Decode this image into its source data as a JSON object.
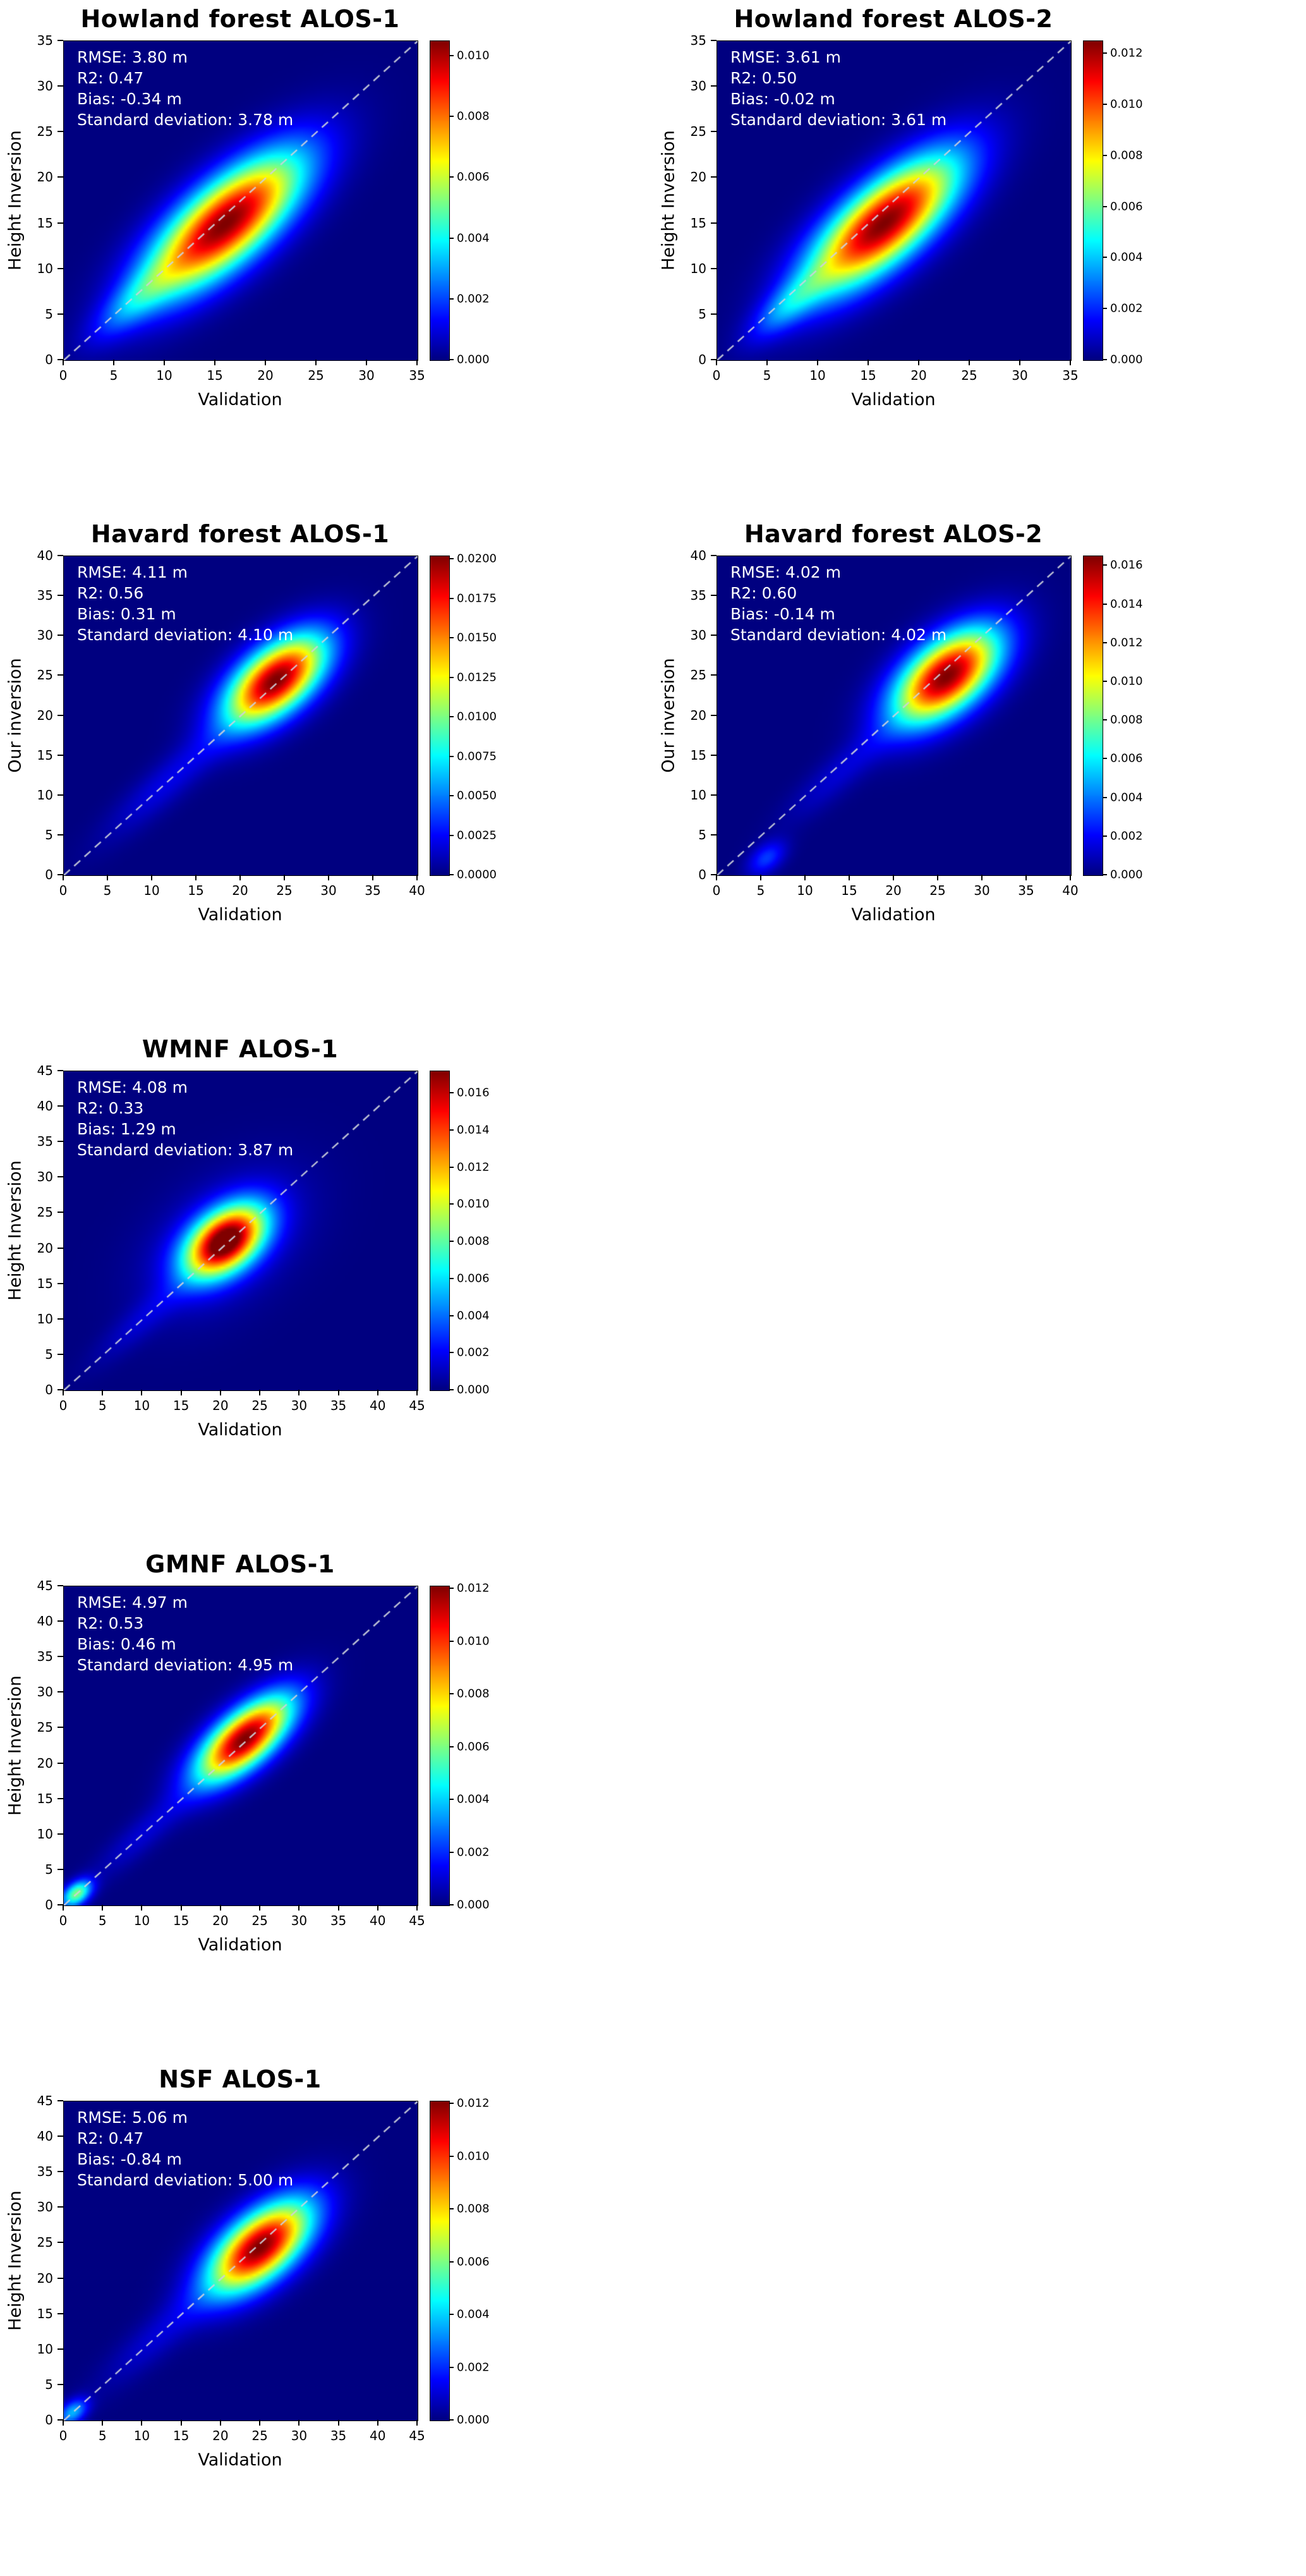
{
  "figure": {
    "background": "#ffffff",
    "colormap": "jet",
    "diagonal_line_style": "dashed",
    "diagonal_line_color": "#cdd2dc"
  },
  "chart_data": [
    {
      "type": "heatmap",
      "title": "Howland forest ALOS-1",
      "row": 0,
      "col": 0,
      "xlabel": "Validation",
      "ylabel": "Height Inversion",
      "xlim": [
        0,
        35
      ],
      "ylim": [
        0,
        35
      ],
      "tick_values": [
        0,
        5,
        10,
        15,
        20,
        25,
        30,
        35
      ],
      "stats": {
        "rmse_m": 3.8,
        "r2": 0.47,
        "bias_m": -0.34,
        "std_m": 3.78
      },
      "stats_lines": [
        "RMSE: 3.80 m",
        "R2: 0.47",
        "Bias: -0.34 m",
        "Standard deviation: 3.78 m"
      ],
      "colorbar": {
        "vmax": 0.0105,
        "tick_values": [
          0.0,
          0.002,
          0.004,
          0.006,
          0.008,
          0.01
        ],
        "tick_labels": [
          "0.000",
          "0.002",
          "0.004",
          "0.006",
          "0.008",
          "0.010"
        ]
      },
      "diagonal_line": true,
      "blobs": [
        {
          "cx": 16,
          "cy": 15,
          "su": 7.0,
          "sv": 2.8,
          "amp": 1.0
        },
        {
          "cx": 7,
          "cy": 6.5,
          "su": 4.0,
          "sv": 1.4,
          "amp": 0.2
        }
      ]
    },
    {
      "type": "heatmap",
      "title": "Howland forest ALOS-2",
      "row": 0,
      "col": 1,
      "xlabel": "Validation",
      "ylabel": "Height Inversion",
      "xlim": [
        0,
        35
      ],
      "ylim": [
        0,
        35
      ],
      "tick_values": [
        0,
        5,
        10,
        15,
        20,
        25,
        30,
        35
      ],
      "stats": {
        "rmse_m": 3.61,
        "r2": 0.5,
        "bias_m": -0.02,
        "std_m": 3.61
      },
      "stats_lines": [
        "RMSE: 3.61 m",
        "R2: 0.50",
        "Bias: -0.02 m",
        "Standard deviation: 3.61 m"
      ],
      "colorbar": {
        "vmax": 0.0125,
        "tick_values": [
          0.0,
          0.002,
          0.004,
          0.006,
          0.008,
          0.01,
          0.012
        ],
        "tick_labels": [
          "0.000",
          "0.002",
          "0.004",
          "0.006",
          "0.008",
          "0.010",
          "0.012"
        ]
      },
      "diagonal_line": true,
      "blobs": [
        {
          "cx": 16.5,
          "cy": 15,
          "su": 6.8,
          "sv": 2.7,
          "amp": 1.0
        },
        {
          "cx": 7,
          "cy": 6,
          "su": 3.5,
          "sv": 1.3,
          "amp": 0.22
        }
      ]
    },
    {
      "type": "heatmap",
      "title": "Havard forest ALOS-1",
      "row": 1,
      "col": 0,
      "xlabel": "Validation",
      "ylabel": "Our inversion",
      "xlim": [
        0,
        40
      ],
      "ylim": [
        0,
        40
      ],
      "tick_values": [
        0,
        5,
        10,
        15,
        20,
        25,
        30,
        35,
        40
      ],
      "stats": {
        "rmse_m": 4.11,
        "r2": 0.56,
        "bias_m": 0.31,
        "std_m": 4.1
      },
      "stats_lines": [
        "RMSE: 4.11 m",
        "R2: 0.56",
        "Bias: 0.31 m",
        "Standard deviation: 4.10 m"
      ],
      "colorbar": {
        "vmax": 0.0202,
        "tick_values": [
          0.0,
          0.0025,
          0.005,
          0.0075,
          0.01,
          0.0125,
          0.015,
          0.0175,
          0.02
        ],
        "tick_labels": [
          "0.0000",
          "0.0025",
          "0.0050",
          "0.0075",
          "0.0100",
          "0.0125",
          "0.0150",
          "0.0175",
          "0.0200"
        ]
      },
      "diagonal_line": true,
      "blobs": [
        {
          "cx": 24,
          "cy": 24.5,
          "su": 5.0,
          "sv": 2.6,
          "amp": 1.0
        },
        {
          "cx": 12,
          "cy": 12,
          "su": 7.0,
          "sv": 1.6,
          "amp": 0.1
        }
      ]
    },
    {
      "type": "heatmap",
      "title": "Havard forest ALOS-2",
      "row": 1,
      "col": 1,
      "xlabel": "Validation",
      "ylabel": "Our inversion",
      "xlim": [
        0,
        40
      ],
      "ylim": [
        0,
        40
      ],
      "tick_values": [
        0,
        5,
        10,
        15,
        20,
        25,
        30,
        35,
        40
      ],
      "stats": {
        "rmse_m": 4.02,
        "r2": 0.6,
        "bias_m": -0.14,
        "std_m": 4.02
      },
      "stats_lines": [
        "RMSE: 4.02 m",
        "R2: 0.60",
        "Bias: -0.14 m",
        "Standard deviation: 4.02 m"
      ],
      "colorbar": {
        "vmax": 0.0165,
        "tick_values": [
          0.0,
          0.002,
          0.004,
          0.006,
          0.008,
          0.01,
          0.012,
          0.014,
          0.016
        ],
        "tick_labels": [
          "0.000",
          "0.002",
          "0.004",
          "0.006",
          "0.008",
          "0.010",
          "0.012",
          "0.014",
          "0.016"
        ]
      },
      "diagonal_line": true,
      "blobs": [
        {
          "cx": 26,
          "cy": 25,
          "su": 5.2,
          "sv": 2.8,
          "amp": 1.0
        },
        {
          "cx": 5.5,
          "cy": 2,
          "su": 1.8,
          "sv": 1.1,
          "amp": 0.18
        },
        {
          "cx": 14,
          "cy": 13,
          "su": 6.0,
          "sv": 1.5,
          "amp": 0.08
        }
      ]
    },
    {
      "type": "heatmap",
      "title": "WMNF ALOS-1",
      "row": 2,
      "col": 0,
      "xlabel": "Validation",
      "ylabel": "Height Inversion",
      "xlim": [
        0,
        45
      ],
      "ylim": [
        0,
        45
      ],
      "tick_values": [
        0,
        5,
        10,
        15,
        20,
        25,
        30,
        35,
        40,
        45
      ],
      "stats": {
        "rmse_m": 4.08,
        "r2": 0.33,
        "bias_m": 1.29,
        "std_m": 3.87
      },
      "stats_lines": [
        "RMSE: 4.08 m",
        "R2: 0.33",
        "Bias: 1.29 m",
        "Standard deviation: 3.87 m"
      ],
      "colorbar": {
        "vmax": 0.0172,
        "tick_values": [
          0.0,
          0.002,
          0.004,
          0.006,
          0.008,
          0.01,
          0.012,
          0.014,
          0.016
        ],
        "tick_labels": [
          "0.000",
          "0.002",
          "0.004",
          "0.006",
          "0.008",
          "0.010",
          "0.012",
          "0.014",
          "0.016"
        ]
      },
      "diagonal_line": true,
      "blobs": [
        {
          "cx": 20.5,
          "cy": 21,
          "su": 4.2,
          "sv": 2.6,
          "amp": 1.0
        },
        {
          "cx": 20.5,
          "cy": 21,
          "su": 8.0,
          "sv": 5.0,
          "amp": 0.12
        },
        {
          "cx": 10,
          "cy": 10,
          "su": 6.0,
          "sv": 1.5,
          "amp": 0.07
        }
      ]
    },
    {
      "type": "heatmap",
      "title": "GMNF ALOS-1",
      "row": 3,
      "col": 0,
      "xlabel": "Validation",
      "ylabel": "Height Inversion",
      "xlim": [
        0,
        45
      ],
      "ylim": [
        0,
        45
      ],
      "tick_values": [
        0,
        5,
        10,
        15,
        20,
        25,
        30,
        35,
        40,
        45
      ],
      "stats": {
        "rmse_m": 4.97,
        "r2": 0.53,
        "bias_m": 0.46,
        "std_m": 4.95
      },
      "stats_lines": [
        "RMSE: 4.97 m",
        "R2: 0.53",
        "Bias: 0.46 m",
        "Standard deviation: 4.95 m"
      ],
      "colorbar": {
        "vmax": 0.0121,
        "tick_values": [
          0.0,
          0.002,
          0.004,
          0.006,
          0.008,
          0.01,
          0.012
        ],
        "tick_labels": [
          "0.000",
          "0.002",
          "0.004",
          "0.006",
          "0.008",
          "0.010",
          "0.012"
        ]
      },
      "diagonal_line": true,
      "blobs": [
        {
          "cx": 23,
          "cy": 23.5,
          "su": 5.5,
          "sv": 2.4,
          "amp": 1.0
        },
        {
          "cx": 1.5,
          "cy": 1.5,
          "su": 1.6,
          "sv": 1.0,
          "amp": 0.5
        },
        {
          "cx": 10,
          "cy": 10,
          "su": 6.0,
          "sv": 1.5,
          "amp": 0.08
        }
      ]
    },
    {
      "type": "heatmap",
      "title": "NSF ALOS-1",
      "row": 4,
      "col": 0,
      "xlabel": "Validation",
      "ylabel": "Height Inversion",
      "xlim": [
        0,
        45
      ],
      "ylim": [
        0,
        45
      ],
      "tick_values": [
        0,
        5,
        10,
        15,
        20,
        25,
        30,
        35,
        40,
        45
      ],
      "stats": {
        "rmse_m": 5.06,
        "r2": 0.47,
        "bias_m": -0.84,
        "std_m": 5.0
      },
      "stats_lines": [
        "RMSE: 5.06 m",
        "R2: 0.47",
        "Bias: -0.84 m",
        "Standard deviation: 5.00 m"
      ],
      "colorbar": {
        "vmax": 0.0121,
        "tick_values": [
          0.0,
          0.002,
          0.004,
          0.006,
          0.008,
          0.01,
          0.012
        ],
        "tick_labels": [
          "0.000",
          "0.002",
          "0.004",
          "0.006",
          "0.008",
          "0.010",
          "0.012"
        ]
      },
      "diagonal_line": true,
      "blobs": [
        {
          "cx": 25,
          "cy": 24.5,
          "su": 5.8,
          "sv": 2.9,
          "amp": 1.0
        },
        {
          "cx": 1,
          "cy": 1,
          "su": 1.6,
          "sv": 1.0,
          "amp": 0.3
        },
        {
          "cx": 12,
          "cy": 12,
          "su": 7.0,
          "sv": 1.8,
          "amp": 0.08
        }
      ]
    }
  ]
}
